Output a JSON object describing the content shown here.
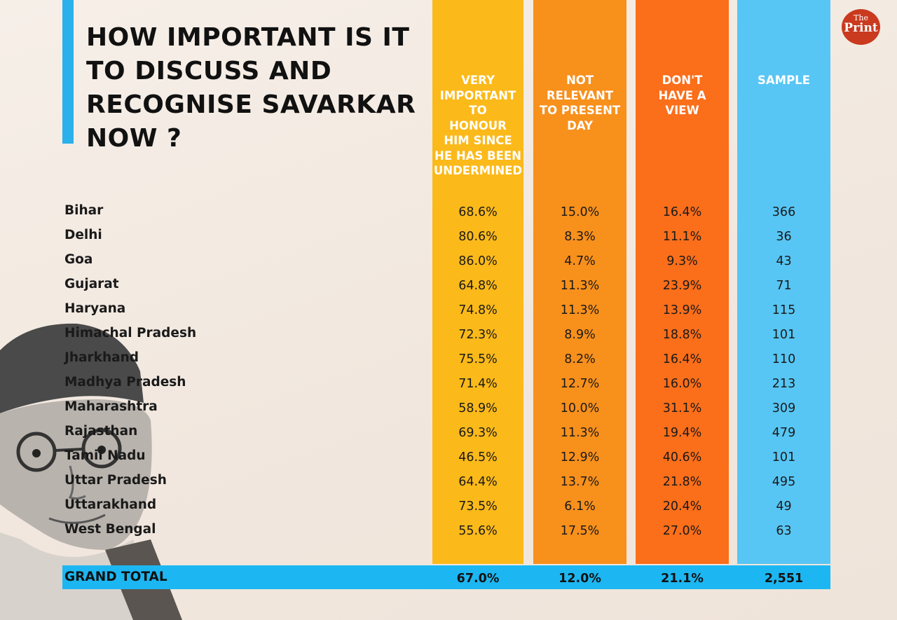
{
  "title": "HOW IMPORTANT IS IT TO DISCUSS AND RECOGNISE SAVARKAR NOW ?",
  "brand": {
    "the": "The",
    "print": "Print"
  },
  "colors": {
    "accent_blue": "#2ab0ea",
    "very_important": "#fbb91a",
    "not_relevant": "#f8901c",
    "no_view": "#fb6e1a",
    "sample": "#57c6f4",
    "total_bar": "#1cb7f2",
    "logo": "#c93a1f"
  },
  "chart_data": {
    "type": "table",
    "title": "HOW IMPORTANT IS IT TO DISCUSS AND RECOGNISE SAVARKAR NOW ?",
    "columns": [
      "VERY\nIMPORTANT\nTO\nHONOUR\nHIM SINCE\nHE HAS BEEN\nUNDERMINED",
      "NOT\nRELEVANT\nTO PRESENT\nDAY",
      "DON'T\nHAVE A\nVIEW",
      "SAMPLE"
    ],
    "rows": [
      {
        "state": "Bihar",
        "values": [
          "68.6%",
          "15.0%",
          "16.4%",
          "366"
        ]
      },
      {
        "state": "Delhi",
        "values": [
          "80.6%",
          "8.3%",
          "11.1%",
          "36"
        ]
      },
      {
        "state": "Goa",
        "values": [
          "86.0%",
          "4.7%",
          "9.3%",
          "43"
        ]
      },
      {
        "state": "Gujarat",
        "values": [
          "64.8%",
          "11.3%",
          "23.9%",
          "71"
        ]
      },
      {
        "state": "Haryana",
        "values": [
          "74.8%",
          "11.3%",
          "13.9%",
          "115"
        ]
      },
      {
        "state": "Himachal Pradesh",
        "values": [
          "72.3%",
          "8.9%",
          "18.8%",
          "101"
        ]
      },
      {
        "state": "Jharkhand",
        "values": [
          "75.5%",
          "8.2%",
          "16.4%",
          "110"
        ]
      },
      {
        "state": "Madhya Pradesh",
        "values": [
          "71.4%",
          "12.7%",
          "16.0%",
          "213"
        ]
      },
      {
        "state": "Maharashtra",
        "values": [
          "58.9%",
          "10.0%",
          "31.1%",
          "309"
        ]
      },
      {
        "state": "Rajasthan",
        "values": [
          "69.3%",
          "11.3%",
          "19.4%",
          "479"
        ]
      },
      {
        "state": "Tamil Nadu",
        "values": [
          "46.5%",
          "12.9%",
          "40.6%",
          "101"
        ]
      },
      {
        "state": "Uttar Pradesh",
        "values": [
          "64.4%",
          "13.7%",
          "21.8%",
          "495"
        ]
      },
      {
        "state": "Uttarakhand",
        "values": [
          "73.5%",
          "6.1%",
          "20.4%",
          "49"
        ]
      },
      {
        "state": "West Bengal",
        "values": [
          "55.6%",
          "17.5%",
          "27.0%",
          "63"
        ]
      }
    ],
    "total": {
      "label": "GRAND TOTAL",
      "values": [
        "67.0%",
        "12.0%",
        "21.1%",
        "2,551"
      ]
    }
  }
}
